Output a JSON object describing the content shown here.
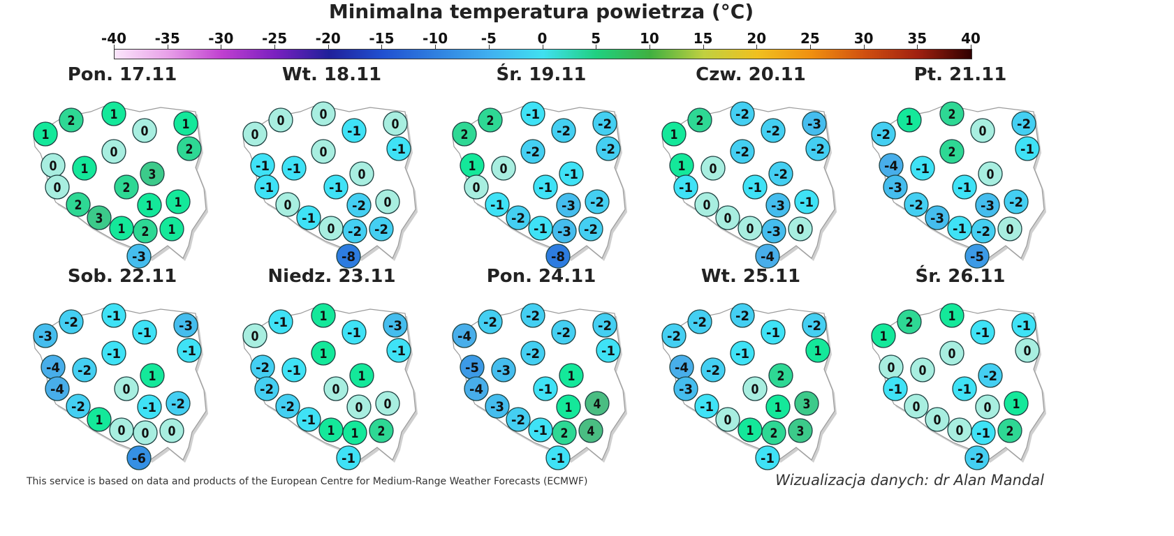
{
  "title": "Minimalna temperatura powietrza (°C)",
  "colorbar": {
    "ticks": [
      "-40",
      "-35",
      "-30",
      "-25",
      "-20",
      "-15",
      "-10",
      "-5",
      "0",
      "5",
      "10",
      "15",
      "20",
      "25",
      "30",
      "35",
      "40"
    ],
    "range": [
      -40,
      40
    ],
    "colors": [
      "#fbe6fb",
      "#e8a0e8",
      "#c040d0",
      "#7a20c0",
      "#20209a",
      "#2050d0",
      "#3080e0",
      "#40b0f0",
      "#40e0f0",
      "#20d080",
      "#40b040",
      "#c0d040",
      "#f0c020",
      "#f09010",
      "#d05010",
      "#a02010",
      "#300000"
    ]
  },
  "chart_data": {
    "type": "map",
    "unit": "°C",
    "maps": [
      {
        "title": "Pon. 17.11",
        "values": [
          1,
          2,
          1,
          0,
          1,
          2,
          0,
          0,
          1,
          3,
          2,
          0,
          2,
          3,
          1,
          1,
          1,
          2,
          1,
          -3
        ]
      },
      {
        "title": "Wt. 18.11",
        "values": [
          0,
          0,
          0,
          -1,
          0,
          -1,
          0,
          -1,
          -1,
          0,
          -1,
          -1,
          0,
          -1,
          -2,
          0,
          0,
          -2,
          -2,
          -8
        ]
      },
      {
        "title": "Śr. 19.11",
        "values": [
          2,
          2,
          -1,
          -2,
          -2,
          -2,
          -2,
          1,
          0,
          -1,
          -1,
          0,
          -1,
          -2,
          -3,
          -2,
          -1,
          -3,
          -2,
          -8
        ]
      },
      {
        "title": "Czw. 20.11",
        "values": [
          1,
          2,
          -2,
          -2,
          -3,
          -2,
          -2,
          1,
          0,
          -2,
          -1,
          -1,
          0,
          0,
          -3,
          -1,
          0,
          -3,
          0,
          -4
        ]
      },
      {
        "title": "Pt. 21.11",
        "values": [
          -2,
          1,
          2,
          0,
          -2,
          -1,
          2,
          -4,
          -1,
          0,
          -1,
          -3,
          -2,
          -3,
          -3,
          -2,
          -1,
          -2,
          0,
          -5
        ]
      },
      {
        "title": "Sob. 22.11",
        "values": [
          -3,
          -2,
          -1,
          -1,
          -3,
          -1,
          -1,
          -4,
          -2,
          1,
          0,
          -4,
          -2,
          1,
          -1,
          -2,
          0,
          0,
          0,
          -6
        ]
      },
      {
        "title": "Niedz. 23.11",
        "values": [
          0,
          -1,
          1,
          -1,
          -3,
          -1,
          1,
          -2,
          -1,
          1,
          0,
          -2,
          -2,
          -1,
          0,
          0,
          1,
          1,
          2,
          -1
        ]
      },
      {
        "title": "Pon. 24.11",
        "values": [
          -4,
          -2,
          -2,
          -2,
          -2,
          -1,
          -2,
          -5,
          -3,
          1,
          -1,
          -4,
          -3,
          -2,
          1,
          4,
          -1,
          2,
          4,
          -1
        ]
      },
      {
        "title": "Wt. 25.11",
        "values": [
          -2,
          -2,
          -2,
          -1,
          -2,
          1,
          -1,
          -4,
          -2,
          2,
          0,
          -3,
          -1,
          0,
          1,
          3,
          1,
          2,
          3,
          -1
        ]
      },
      {
        "title": "Śr. 26.11",
        "values": [
          1,
          2,
          1,
          -1,
          -1,
          0,
          0,
          0,
          0,
          -2,
          -1,
          -1,
          0,
          0,
          0,
          1,
          0,
          -1,
          2,
          -2
        ]
      }
    ]
  },
  "footer": {
    "source": "This service is based on data and products of the European Centre for Medium-Range Weather Forecasts (ECMWF)",
    "author": "Wizualizacja danych: dr Alan Mandal"
  }
}
